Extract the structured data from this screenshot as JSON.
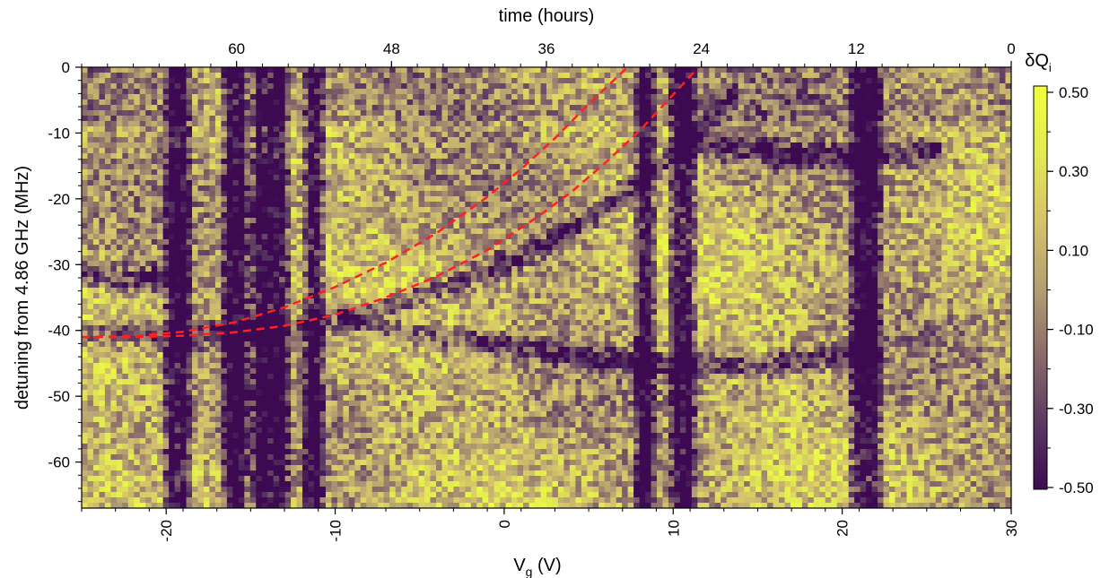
{
  "chart_data": {
    "type": "heatmap",
    "xlabel": "V",
    "xlabel_sub": "g",
    "xlabel_unit": " (V)",
    "x2label": "time (hours)",
    "ylabel": "detuning from 4.86 GHz (MHz)",
    "colorbar_label": "δQ",
    "colorbar_label_sub": "i",
    "xlim": [
      -25,
      30
    ],
    "ylim": [
      -67,
      0
    ],
    "x2lim": [
      72,
      0
    ],
    "clim": [
      -0.5,
      0.5
    ],
    "x_ticks": [
      -20,
      -10,
      0,
      10,
      20,
      30
    ],
    "x_tick_labels": [
      "-20",
      "-10",
      "0",
      "10",
      "20",
      "30"
    ],
    "x2_ticks": [
      60,
      48,
      36,
      24,
      12,
      0
    ],
    "x2_tick_labels": [
      "60",
      "48",
      "36",
      "24",
      "12",
      "0"
    ],
    "y_ticks": [
      0,
      -10,
      -20,
      -30,
      -40,
      -50,
      -60
    ],
    "y_tick_labels": [
      "0",
      "-10",
      "-20",
      "-30",
      "-40",
      "-50",
      "-60"
    ],
    "colorbar_ticks": [
      0.5,
      0.3,
      0.1,
      -0.1,
      -0.3,
      -0.5
    ],
    "colorbar_tick_labels": [
      "0.50",
      "0.30",
      "0.10",
      "-0.10",
      "-0.30",
      "-0.50"
    ],
    "colormap": [
      "#3d0a52",
      "#5a3a62",
      "#8a6b6a",
      "#b3a072",
      "#d6c36a",
      "#e2ea52",
      "#f0ff3c"
    ],
    "vertical_dark_bands_x": [
      -19.3,
      -15.8,
      -14.2,
      -13.4,
      -11.3,
      8.4,
      10.6,
      21.1,
      21.8
    ],
    "dark_feature_curves": [
      {
        "x": [
          -25,
          -22,
          -19,
          -16,
          -13,
          -10,
          -7,
          -4,
          -1,
          2,
          5,
          8,
          11,
          14
        ],
        "y": [
          -40.5,
          -40.8,
          -40.9,
          -40.6,
          -40.0,
          -38.5,
          -36.5,
          -34.0,
          -31.0,
          -27.5,
          -23.0,
          -17.5,
          -11.0,
          -3.0
        ]
      },
      {
        "x": [
          -10,
          -6,
          -2,
          2,
          6,
          10,
          14,
          18,
          22
        ],
        "y": [
          -38.0,
          -40.0,
          -41.5,
          -43.0,
          -44.5,
          -45.5,
          -45.5,
          -44.5,
          -42.0
        ]
      },
      {
        "x": [
          -25,
          -23,
          -21,
          -19.5
        ],
        "y": [
          -31.0,
          -32.0,
          -32.0,
          -31.0
        ]
      },
      {
        "x": [
          10,
          14,
          18,
          22,
          26
        ],
        "y": [
          -11.0,
          -12.5,
          -13.5,
          -13.5,
          -12.5
        ]
      }
    ],
    "series": [
      {
        "color": "#ff2020",
        "style": "dashed",
        "x": [
          -25,
          -22,
          -19,
          -16,
          -13,
          -10,
          -7,
          -4,
          -1,
          2,
          4,
          6,
          8,
          11.5
        ],
        "y": [
          -41,
          -41,
          -40.8,
          -40.3,
          -39.3,
          -37.6,
          -35.0,
          -31.8,
          -27.8,
          -22.7,
          -18.9,
          -14.5,
          -9.7,
          0
        ]
      },
      {
        "color": "#ff2020",
        "style": "dashed",
        "x": [
          -25,
          -22,
          -19,
          -16,
          -13,
          -10,
          -7,
          -4,
          -1,
          1,
          3,
          5,
          7.3
        ],
        "y": [
          -41,
          -40.9,
          -40.2,
          -38.8,
          -36.5,
          -33.4,
          -29.7,
          -25.2,
          -19.7,
          -15.5,
          -10.8,
          -5.6,
          0
        ]
      }
    ]
  }
}
